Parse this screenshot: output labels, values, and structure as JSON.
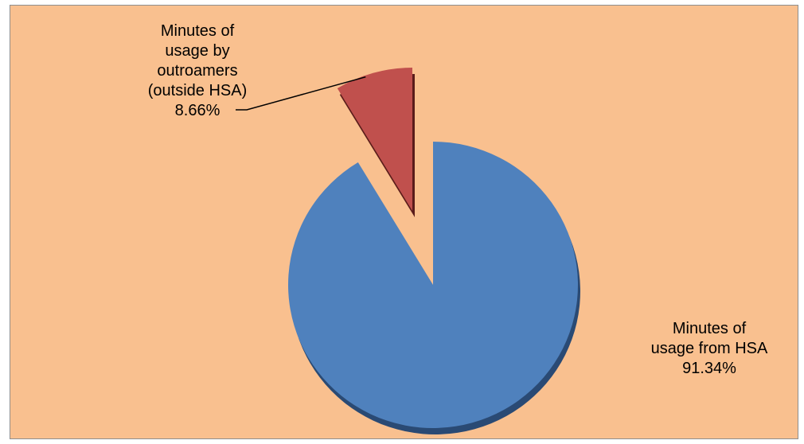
{
  "chart_data": {
    "type": "pie",
    "title": "",
    "exploded": true,
    "slices": [
      {
        "label": "Minutes of\nusage from HSA\n91.34%",
        "name": "Minutes of usage from HSA",
        "value": 91.34,
        "color": "#4f81bd",
        "shadow": "#2a4a74"
      },
      {
        "label": "Minutes of\nusage by\noutroamers\n(outside HSA)\n8.66%",
        "name": "Minutes of usage by outroamers (outside HSA)",
        "value": 8.66,
        "color": "#c0504d",
        "shadow": "#5a1c1a"
      }
    ],
    "legend": "none",
    "background": "#f9c08f"
  }
}
